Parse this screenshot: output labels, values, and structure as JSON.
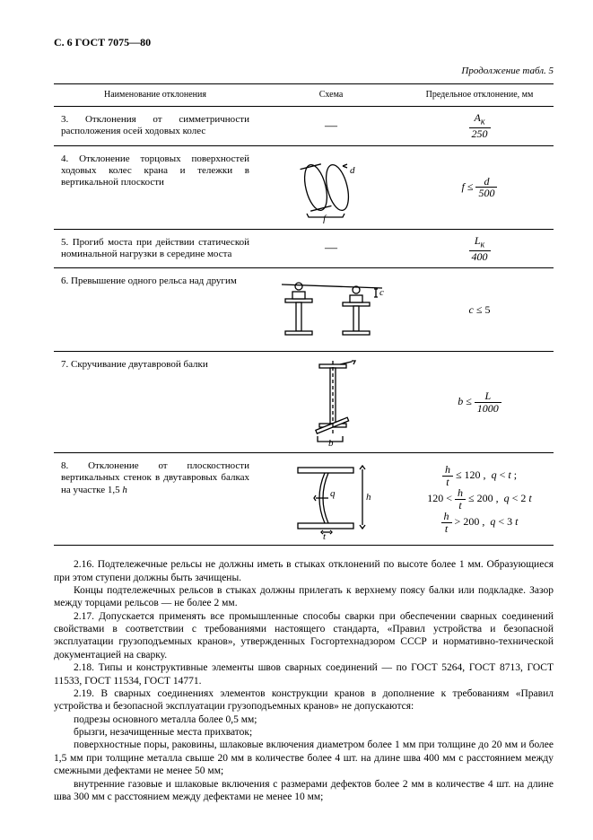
{
  "header": "С. 6 ГОСТ 7075—80",
  "continuation": "Продолжение табл. 5",
  "table": {
    "columns": [
      "Наименование отклонения",
      "Схема",
      "Предельное отклонение, мм"
    ],
    "rows": [
      {
        "idx": 3,
        "name": "3. Отклонения от симметрич­ности расположения осей ходовых колес",
        "limit_html": "<span class='frac'><span class='n'><i>A</i><sub>к</sub></span><span class='d'>250</span></span>",
        "scheme": "dash"
      },
      {
        "idx": 4,
        "name": "4. Отклонение торцовых по­верхностей ходовых колес крана и тележки в вертикальной плоскости",
        "limit_html": "<i>f</i> &le; <span class='frac'><span class='n'><i>d</i></span><span class='d'>500</span></span>",
        "scheme": "wheel"
      },
      {
        "idx": 5,
        "name": "5. Прогиб моста при действии статической номинальной нагрузки в середине моста",
        "limit_html": "<span class='frac'><span class='n'><i>L</i><sub>к</sub></span><span class='d'>400</span></span>",
        "scheme": "dash"
      },
      {
        "idx": 6,
        "name": "6. Превышение одного рельса над другим",
        "limit_html": "<i>c</i> &le; 5",
        "scheme": "rails"
      },
      {
        "idx": 7,
        "name": "7. Скручивание двутавровой балки",
        "limit_html": "<i>b</i> &le; <span class='frac'><span class='n'><i>L</i></span><span class='d'>1000</span></span>",
        "scheme": "twist"
      },
      {
        "idx": 8,
        "name": "8. Отклонение от плоскостности вертикальных стенок в двутавровых балках на участке 1,5 <i>h</i>",
        "limit_html": "<span class='frac'><span class='n'><i>h</i></span><span class='d'><i>t</i></span></span> &le; 120 , &nbsp;<i>q</i> &lt; <i>t</i> ;<br>120 &lt; <span class='frac'><span class='n'><i>h</i></span><span class='d'><i>t</i></span></span> &le; 200 , &nbsp;<i>q</i> &lt; 2 <i>t</i><br><span class='frac'><span class='n'><i>h</i></span><span class='d'><i>t</i></span></span> &gt; 200 , &nbsp;<i>q</i> &lt; 3 <i>t</i>",
        "scheme": "flatness"
      }
    ]
  },
  "paragraphs": [
    "2.16. Подтележечные рельсы не должны иметь в стыках отклонений по высоте более 1 мм. Образующиеся при этом ступени должны быть зачищены.",
    "Концы подтележечных рельсов в стыках должны прилегать к верхнему поясу балки или подкладке. Зазор между торцами рельсов — не более 2 мм.",
    "2.17. Допускается применять все промышленные способы сварки при обеспечении сварных соединений свойствами в соответствии с требованиями настоящего стандарта, «Правил устройства и безопасной эксплуатации грузоподъемных кранов», утвержденных Госгортехнадзором СССР и нормативно-технической документацией на сварку.",
    "2.18. Типы и конструктивные элементы швов сварных соединений — по ГОСТ 5264, ГОСТ 8713, ГОСТ 11533, ГОСТ 11534, ГОСТ 14771.",
    "2.19. В сварных соединениях элементов конструкции кранов в дополнение к требованиям «Правил устройства и безопасной эксплуатации грузоподъемных кранов» не допускаются:",
    "подрезы основного металла более 0,5 мм;",
    "брызги, незачищенные места прихваток;",
    "поверхностные поры, раковины, шлаковые включения диаметром более 1 мм при толщине до 20 мм и более 1,5 мм при толщине металла свыше 20 мм в количестве более 4 шт. на длине шва 400 мм с расстоянием между смежными дефектами не менее 50 мм;",
    "внутренние газовые и шлаковые включения с размерами дефектов более 2 мм в количестве 4 шт. на длине шва 300 мм с расстоянием между дефектами не менее 10 мм;"
  ]
}
